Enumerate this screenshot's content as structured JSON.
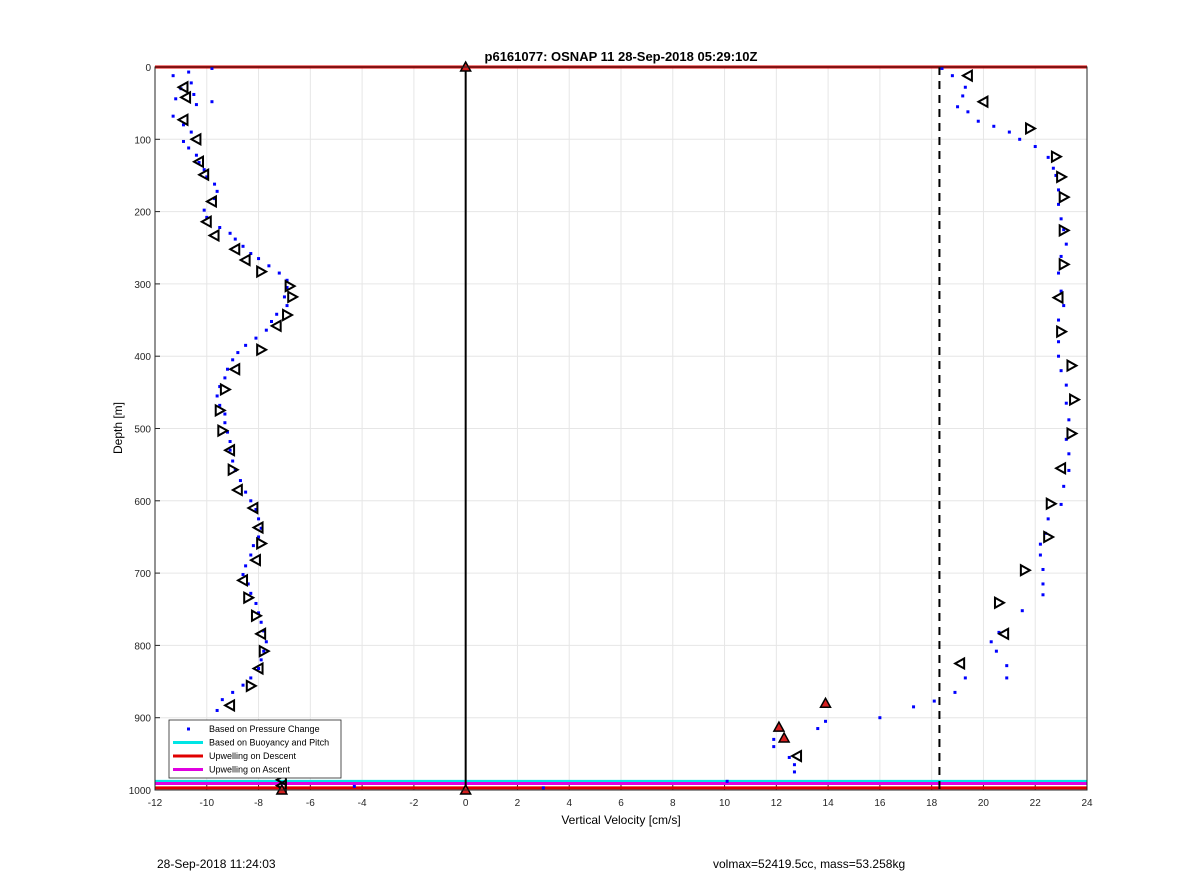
{
  "chart_data": {
    "type": "scatter",
    "title": "p6161077: OSNAP 11 28-Sep-2018 05:29:10Z",
    "xlabel": "Vertical Velocity [cm/s]",
    "ylabel": "Depth [m]",
    "xlim": [
      -12,
      24
    ],
    "ylim": [
      0,
      1000
    ],
    "y_reversed": true,
    "grid": true,
    "xticks": [
      "-12",
      "-10",
      "-8",
      "-6",
      "-4",
      "-2",
      "0",
      "2",
      "4",
      "6",
      "8",
      "10",
      "12",
      "14",
      "16",
      "18",
      "20",
      "22",
      "24"
    ],
    "yticks": [
      "0",
      "100",
      "200",
      "300",
      "400",
      "500",
      "600",
      "700",
      "800",
      "900",
      "1000"
    ],
    "legend": {
      "placement": "bottom-left",
      "entries": [
        {
          "label": "Based on Pressure Change",
          "style": "dot",
          "color": "#0000ff"
        },
        {
          "label": "Based on Buoyancy and Pitch",
          "style": "line",
          "color": "#00e5e5"
        },
        {
          "label": "Upwelling on Descent",
          "style": "line",
          "color": "#e00000"
        },
        {
          "label": "Upwelling on Ascent",
          "style": "line",
          "color": "#e000e0"
        }
      ]
    },
    "pressure_points": [
      [
        -9.8,
        2
      ],
      [
        -10.7,
        7
      ],
      [
        -11.3,
        12
      ],
      [
        -10.6,
        22
      ],
      [
        -11.0,
        30
      ],
      [
        -10.5,
        38
      ],
      [
        -11.2,
        44
      ],
      [
        -10.4,
        52
      ],
      [
        -9.8,
        48
      ],
      [
        -11.3,
        68
      ],
      [
        -10.9,
        80
      ],
      [
        -10.6,
        90
      ],
      [
        -10.9,
        103
      ],
      [
        -10.7,
        112
      ],
      [
        -10.4,
        122
      ],
      [
        -10.3,
        132
      ],
      [
        -10.1,
        142
      ],
      [
        -10.0,
        152
      ],
      [
        -9.7,
        162
      ],
      [
        -9.6,
        172
      ],
      [
        -9.7,
        182
      ],
      [
        -10.1,
        198
      ],
      [
        -10.0,
        208
      ],
      [
        -9.5,
        222
      ],
      [
        -9.1,
        230
      ],
      [
        -8.9,
        238
      ],
      [
        -8.6,
        248
      ],
      [
        -8.3,
        258
      ],
      [
        -8.0,
        265
      ],
      [
        -7.6,
        275
      ],
      [
        -7.2,
        285
      ],
      [
        -6.9,
        295
      ],
      [
        -6.9,
        305
      ],
      [
        -7.0,
        318
      ],
      [
        -6.9,
        330
      ],
      [
        -7.3,
        342
      ],
      [
        -7.5,
        352
      ],
      [
        -7.7,
        364
      ],
      [
        -8.1,
        375
      ],
      [
        -8.5,
        385
      ],
      [
        -8.8,
        395
      ],
      [
        -9.0,
        405
      ],
      [
        -9.2,
        418
      ],
      [
        -9.3,
        430
      ],
      [
        -9.5,
        442
      ],
      [
        -9.6,
        455
      ],
      [
        -9.5,
        468
      ],
      [
        -9.3,
        480
      ],
      [
        -9.3,
        492
      ],
      [
        -9.2,
        505
      ],
      [
        -9.1,
        518
      ],
      [
        -9.1,
        530
      ],
      [
        -9.0,
        545
      ],
      [
        -8.9,
        558
      ],
      [
        -8.7,
        572
      ],
      [
        -8.5,
        588
      ],
      [
        -8.3,
        600
      ],
      [
        -8.1,
        612
      ],
      [
        -8.0,
        625
      ],
      [
        -7.9,
        638
      ],
      [
        -8.0,
        650
      ],
      [
        -8.2,
        662
      ],
      [
        -8.3,
        675
      ],
      [
        -8.5,
        690
      ],
      [
        -8.6,
        702
      ],
      [
        -8.4,
        715
      ],
      [
        -8.3,
        728
      ],
      [
        -8.1,
        742
      ],
      [
        -8.0,
        755
      ],
      [
        -7.9,
        768
      ],
      [
        -7.8,
        780
      ],
      [
        -7.7,
        795
      ],
      [
        -7.8,
        808
      ],
      [
        -7.9,
        820
      ],
      [
        -8.0,
        832
      ],
      [
        -8.3,
        845
      ],
      [
        -8.6,
        855
      ],
      [
        -9.0,
        865
      ],
      [
        -9.4,
        875
      ],
      [
        -9.6,
        890
      ],
      [
        -9.7,
        905
      ],
      [
        -9.5,
        918
      ],
      [
        -9.1,
        930
      ],
      [
        -8.6,
        942
      ],
      [
        -8.3,
        955
      ],
      [
        -7.9,
        965
      ],
      [
        -7.6,
        972
      ],
      [
        -7.3,
        980
      ],
      [
        -7.1,
        990
      ],
      [
        -4.3,
        995
      ],
      [
        3.0,
        997
      ],
      [
        10.1,
        988
      ],
      [
        12.7,
        975
      ],
      [
        12.7,
        965
      ],
      [
        12.5,
        955
      ],
      [
        11.9,
        940
      ],
      [
        11.9,
        930
      ],
      [
        13.6,
        915
      ],
      [
        13.9,
        905
      ],
      [
        16.0,
        900
      ],
      [
        17.3,
        885
      ],
      [
        18.1,
        877
      ],
      [
        18.9,
        865
      ],
      [
        19.3,
        845
      ],
      [
        20.9,
        845
      ],
      [
        20.9,
        828
      ],
      [
        20.5,
        808
      ],
      [
        20.3,
        795
      ],
      [
        20.6,
        782
      ],
      [
        21.5,
        752
      ],
      [
        22.3,
        730
      ],
      [
        22.3,
        715
      ],
      [
        22.3,
        695
      ],
      [
        22.2,
        675
      ],
      [
        22.2,
        660
      ],
      [
        22.4,
        645
      ],
      [
        22.5,
        625
      ],
      [
        23.0,
        605
      ],
      [
        23.1,
        580
      ],
      [
        23.3,
        558
      ],
      [
        23.3,
        535
      ],
      [
        23.2,
        515
      ],
      [
        23.3,
        488
      ],
      [
        23.2,
        465
      ],
      [
        23.2,
        440
      ],
      [
        23.0,
        420
      ],
      [
        22.9,
        400
      ],
      [
        22.9,
        380
      ],
      [
        22.9,
        350
      ],
      [
        23.1,
        330
      ],
      [
        23.0,
        310
      ],
      [
        22.9,
        285
      ],
      [
        23.0,
        262
      ],
      [
        23.2,
        245
      ],
      [
        23.1,
        225
      ],
      [
        23.0,
        210
      ],
      [
        22.9,
        190
      ],
      [
        22.9,
        170
      ],
      [
        22.8,
        150
      ],
      [
        22.7,
        140
      ],
      [
        22.5,
        125
      ],
      [
        22.0,
        110
      ],
      [
        21.4,
        100
      ],
      [
        21.0,
        90
      ],
      [
        20.4,
        82
      ],
      [
        19.8,
        75
      ],
      [
        19.4,
        62
      ],
      [
        19.0,
        55
      ],
      [
        19.2,
        40
      ],
      [
        19.3,
        28
      ],
      [
        18.8,
        12
      ],
      [
        18.4,
        2
      ]
    ],
    "buoyancy_markers": [
      {
        "x": -10.9,
        "y": 28,
        "dir": "left"
      },
      {
        "x": -10.8,
        "y": 42,
        "dir": "left"
      },
      {
        "x": -10.9,
        "y": 73,
        "dir": "left"
      },
      {
        "x": -10.4,
        "y": 100,
        "dir": "left"
      },
      {
        "x": -10.3,
        "y": 131,
        "dir": "left"
      },
      {
        "x": -10.1,
        "y": 149,
        "dir": "left"
      },
      {
        "x": -9.8,
        "y": 186,
        "dir": "left"
      },
      {
        "x": -10.0,
        "y": 214,
        "dir": "left"
      },
      {
        "x": -9.7,
        "y": 233,
        "dir": "left"
      },
      {
        "x": -8.9,
        "y": 252,
        "dir": "left"
      },
      {
        "x": -8.5,
        "y": 267,
        "dir": "left"
      },
      {
        "x": -7.9,
        "y": 283,
        "dir": "right"
      },
      {
        "x": -6.8,
        "y": 303,
        "dir": "right"
      },
      {
        "x": -6.7,
        "y": 318,
        "dir": "right"
      },
      {
        "x": -6.9,
        "y": 343,
        "dir": "right"
      },
      {
        "x": -7.3,
        "y": 358,
        "dir": "left"
      },
      {
        "x": -7.9,
        "y": 391,
        "dir": "right"
      },
      {
        "x": -8.9,
        "y": 418,
        "dir": "left"
      },
      {
        "x": -9.3,
        "y": 446,
        "dir": "right"
      },
      {
        "x": -9.5,
        "y": 475,
        "dir": "right"
      },
      {
        "x": -9.4,
        "y": 503,
        "dir": "right"
      },
      {
        "x": -9.1,
        "y": 530,
        "dir": "left"
      },
      {
        "x": -9.0,
        "y": 557,
        "dir": "right"
      },
      {
        "x": -8.8,
        "y": 585,
        "dir": "left"
      },
      {
        "x": -8.2,
        "y": 610,
        "dir": "left"
      },
      {
        "x": -8.0,
        "y": 637,
        "dir": "left"
      },
      {
        "x": -7.9,
        "y": 659,
        "dir": "right"
      },
      {
        "x": -8.1,
        "y": 682,
        "dir": "left"
      },
      {
        "x": -8.6,
        "y": 710,
        "dir": "left"
      },
      {
        "x": -8.4,
        "y": 734,
        "dir": "right"
      },
      {
        "x": -8.1,
        "y": 759,
        "dir": "right"
      },
      {
        "x": -7.9,
        "y": 784,
        "dir": "left"
      },
      {
        "x": -7.8,
        "y": 808,
        "dir": "right"
      },
      {
        "x": -8.0,
        "y": 832,
        "dir": "left"
      },
      {
        "x": -8.3,
        "y": 856,
        "dir": "right"
      },
      {
        "x": -9.1,
        "y": 883,
        "dir": "left"
      },
      {
        "x": -9.7,
        "y": 912,
        "dir": "left"
      },
      {
        "x": -9.2,
        "y": 932,
        "dir": "right"
      },
      {
        "x": -8.7,
        "y": 949,
        "dir": "left"
      },
      {
        "x": -8.1,
        "y": 965,
        "dir": "left"
      },
      {
        "x": -7.1,
        "y": 986,
        "dir": "left"
      },
      {
        "x": -7.1,
        "y": 994,
        "dir": "left"
      },
      {
        "x": 12.8,
        "y": 953,
        "dir": "left"
      },
      {
        "x": 19.4,
        "y": 12,
        "dir": "left"
      },
      {
        "x": 20.0,
        "y": 48,
        "dir": "left"
      },
      {
        "x": 21.8,
        "y": 85,
        "dir": "right"
      },
      {
        "x": 22.8,
        "y": 124,
        "dir": "right"
      },
      {
        "x": 23.0,
        "y": 152,
        "dir": "right"
      },
      {
        "x": 23.1,
        "y": 180,
        "dir": "right"
      },
      {
        "x": 23.1,
        "y": 226,
        "dir": "right"
      },
      {
        "x": 23.1,
        "y": 273,
        "dir": "right"
      },
      {
        "x": 22.9,
        "y": 319,
        "dir": "left"
      },
      {
        "x": 23.0,
        "y": 366,
        "dir": "right"
      },
      {
        "x": 23.4,
        "y": 413,
        "dir": "right"
      },
      {
        "x": 23.5,
        "y": 460,
        "dir": "right"
      },
      {
        "x": 23.4,
        "y": 507,
        "dir": "right"
      },
      {
        "x": 23.0,
        "y": 555,
        "dir": "left"
      },
      {
        "x": 22.6,
        "y": 604,
        "dir": "right"
      },
      {
        "x": 22.5,
        "y": 650,
        "dir": "right"
      },
      {
        "x": 21.6,
        "y": 696,
        "dir": "right"
      },
      {
        "x": 20.6,
        "y": 741,
        "dir": "right"
      },
      {
        "x": 20.8,
        "y": 784,
        "dir": "left"
      },
      {
        "x": 19.1,
        "y": 825,
        "dir": "left"
      }
    ],
    "descent_upwelling_points": [
      {
        "x": 0,
        "y": 0
      },
      {
        "x": 0,
        "y": 1000
      },
      {
        "x": 13.9,
        "y": 880
      },
      {
        "x": 12.1,
        "y": 913
      },
      {
        "x": 12.3,
        "y": 928
      },
      {
        "x": -7.1,
        "y": 1000
      }
    ],
    "vertical_lines": [
      {
        "x": 0,
        "style": "solid",
        "color": "#000000"
      },
      {
        "x": 18.3,
        "style": "dashed",
        "color": "#000000"
      }
    ],
    "horizontal_lines": [
      {
        "y": 0,
        "color": "#e00000"
      },
      {
        "y": 997,
        "color": "#e00000"
      },
      {
        "y": 988,
        "color": "#00e5e5"
      },
      {
        "y": 991,
        "color": "#e000e0"
      }
    ]
  },
  "footer": {
    "left": "28-Sep-2018 11:24:03",
    "right": "volmax=52419.5cc, mass=53.258kg"
  }
}
